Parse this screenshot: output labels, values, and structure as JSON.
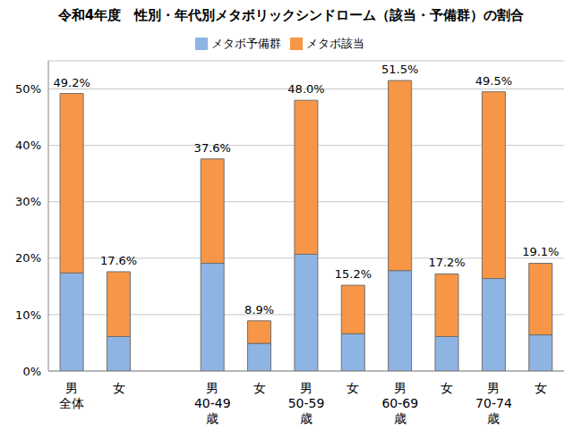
{
  "chart_data": {
    "type": "bar",
    "title": "令和4年度　性別・年代別メタボリックシンドローム（該当・予備群）の割合",
    "categories": [
      "男\n全体",
      "女",
      null,
      "男\n40-49\n歳",
      "女",
      "男\n50-59\n歳",
      "女",
      "男\n60-69\n歳",
      "女",
      "男\n70-74\n歳",
      "女"
    ],
    "series": [
      {
        "name": "メタボ予備群",
        "color": "#8eb4e3",
        "values": [
          17.4,
          6.1,
          null,
          19.1,
          4.9,
          20.7,
          6.6,
          17.8,
          6.1,
          16.4,
          6.4
        ]
      },
      {
        "name": "メタボ該当",
        "color": "#f79646",
        "values": [
          31.8,
          11.5,
          null,
          18.5,
          4.0,
          27.3,
          8.6,
          33.7,
          11.1,
          33.1,
          12.7
        ]
      }
    ],
    "totals": [
      49.2,
      17.6,
      null,
      37.6,
      8.9,
      48.0,
      15.2,
      51.5,
      17.2,
      49.5,
      19.1
    ],
    "total_labels": [
      "49.2%",
      "17.6%",
      null,
      "37.6%",
      "8.9%",
      "48.0%",
      "15.2%",
      "51.5%",
      "17.2%",
      "49.5%",
      "19.1%"
    ],
    "ylim": [
      0,
      55
    ],
    "yticks": [
      {
        "value": 0,
        "label": "0%"
      },
      {
        "value": 10,
        "label": "10%"
      },
      {
        "value": 20,
        "label": "20%"
      },
      {
        "value": 30,
        "label": "30%"
      },
      {
        "value": 40,
        "label": "40%"
      },
      {
        "value": 50,
        "label": "50%"
      }
    ],
    "stacked": true,
    "grid": true,
    "legend": "top"
  }
}
